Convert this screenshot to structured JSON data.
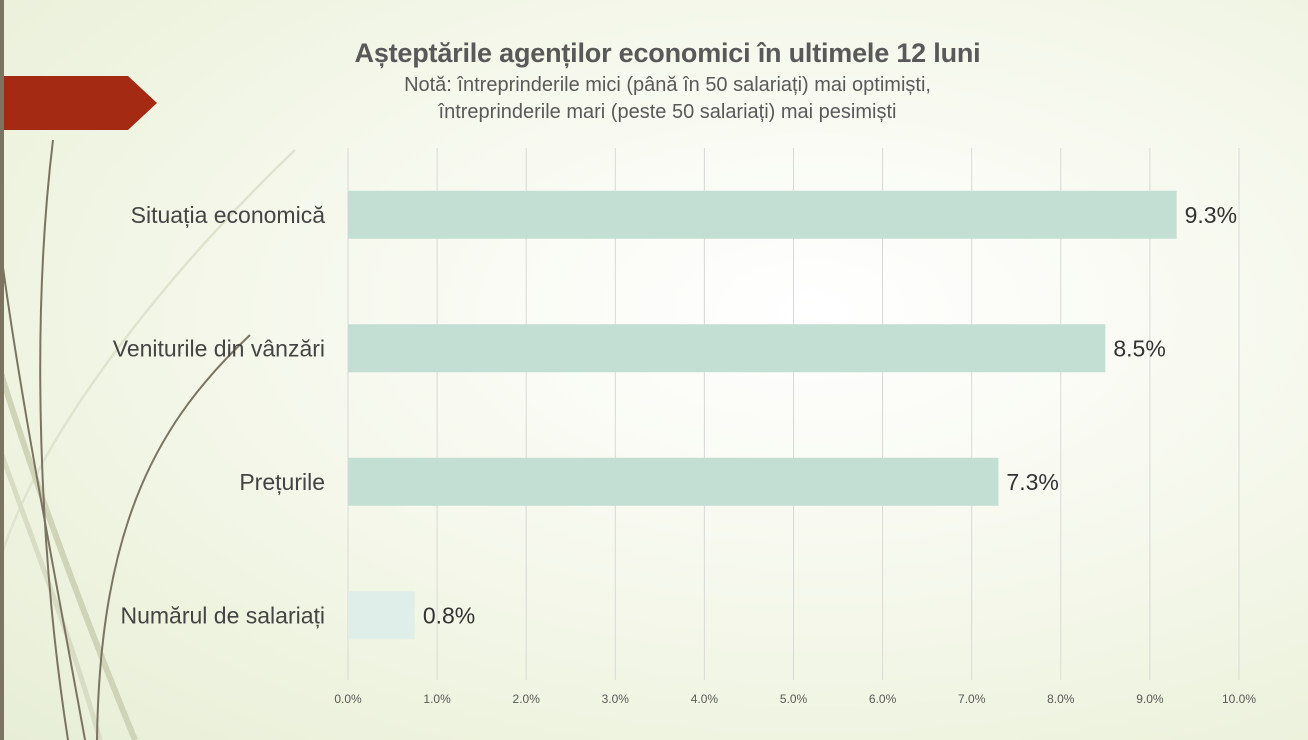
{
  "slide": {
    "accent_color": "#a52a14",
    "bar_color": "#c3ded3",
    "bar_color_highlight": "#e0eeea"
  },
  "chart_data": {
    "type": "bar",
    "orientation": "horizontal",
    "title": "Așteptările agenților economici în ultimele 12 luni",
    "subtitle": "Notă: întreprinderile mici (până în 50 salariați) mai optimiști,\nîntreprinderile mari (peste 50 salariați) mai pesimiști",
    "categories": [
      "Situația economică",
      "Veniturile din vânzări",
      "Prețurile",
      "Numărul de salariați"
    ],
    "values": [
      9.3,
      8.5,
      7.3,
      0.75
    ],
    "value_labels": [
      "9.3%",
      "8.5%",
      "7.3%",
      "0.8%"
    ],
    "xlim": [
      0,
      10
    ],
    "ticks": [
      "0.0%",
      "1.0%",
      "2.0%",
      "3.0%",
      "4.0%",
      "5.0%",
      "6.0%",
      "7.0%",
      "8.0%",
      "9.0%",
      "10.0%"
    ],
    "grid": true,
    "legend": "none"
  }
}
